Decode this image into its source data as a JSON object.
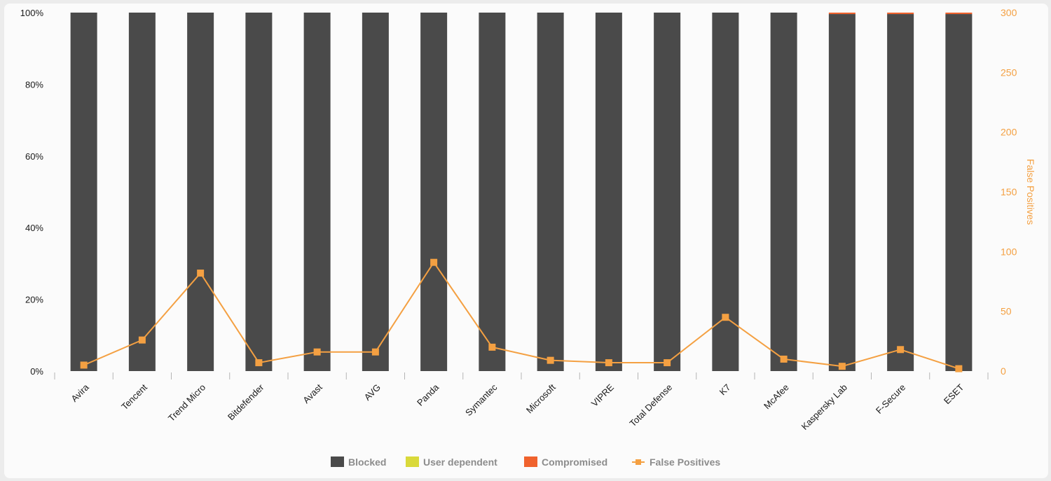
{
  "chart_data": {
    "type": "bar",
    "title": "",
    "xlabel": "",
    "categories": [
      "Avira",
      "Tencent",
      "Trend Micro",
      "Bitdefender",
      "Avast",
      "AVG",
      "Panda",
      "Symantec",
      "Microsoft",
      "VIPRE",
      "Total Defense",
      "K7",
      "McAfee",
      "Kaspersky Lab",
      "F-Secure",
      "ESET"
    ],
    "series": [
      {
        "name": "Blocked",
        "type": "bar",
        "axis": "left",
        "color": "#4a4a4a",
        "values": [
          100,
          100,
          100,
          100,
          100,
          100,
          100,
          100,
          100,
          100,
          100,
          100,
          100,
          99.6,
          99.6,
          99.6
        ]
      },
      {
        "name": "User dependent",
        "type": "bar",
        "axis": "left",
        "color": "#d9d93a",
        "values": [
          0,
          0,
          0,
          0,
          0,
          0,
          0,
          0,
          0,
          0,
          0,
          0,
          0,
          0,
          0,
          0
        ]
      },
      {
        "name": "Compromised",
        "type": "bar",
        "axis": "left",
        "color": "#f0622d",
        "values": [
          0,
          0,
          0,
          0,
          0,
          0,
          0,
          0,
          0,
          0,
          0,
          0,
          0,
          0.4,
          0.4,
          0.4
        ]
      },
      {
        "name": "False Positives",
        "type": "line",
        "axis": "right",
        "color": "#f4a042",
        "values": [
          5,
          26,
          82,
          7,
          16,
          16,
          91,
          20,
          9,
          7,
          7,
          45,
          10,
          4,
          18,
          2
        ]
      }
    ],
    "y_left": {
      "min": 0,
      "max": 100,
      "ticks": [
        "0%",
        "20%",
        "40%",
        "60%",
        "80%",
        "100%"
      ],
      "tick_values": [
        0,
        20,
        40,
        60,
        80,
        100
      ]
    },
    "y_right": {
      "label": "False Positives",
      "min": 0,
      "max": 300,
      "ticks": [
        "0",
        "50",
        "100",
        "150",
        "200",
        "250",
        "300"
      ],
      "tick_values": [
        0,
        50,
        100,
        150,
        200,
        250,
        300
      ]
    },
    "grid": false,
    "legend_position": "bottom-center"
  },
  "legend": [
    {
      "label": "Blocked",
      "color": "#4a4a4a",
      "kind": "box"
    },
    {
      "label": "User dependent",
      "color": "#d9d93a",
      "kind": "box"
    },
    {
      "label": "Compromised",
      "color": "#f0622d",
      "kind": "box"
    },
    {
      "label": "False Positives",
      "color": "#f4a042",
      "kind": "line"
    }
  ]
}
